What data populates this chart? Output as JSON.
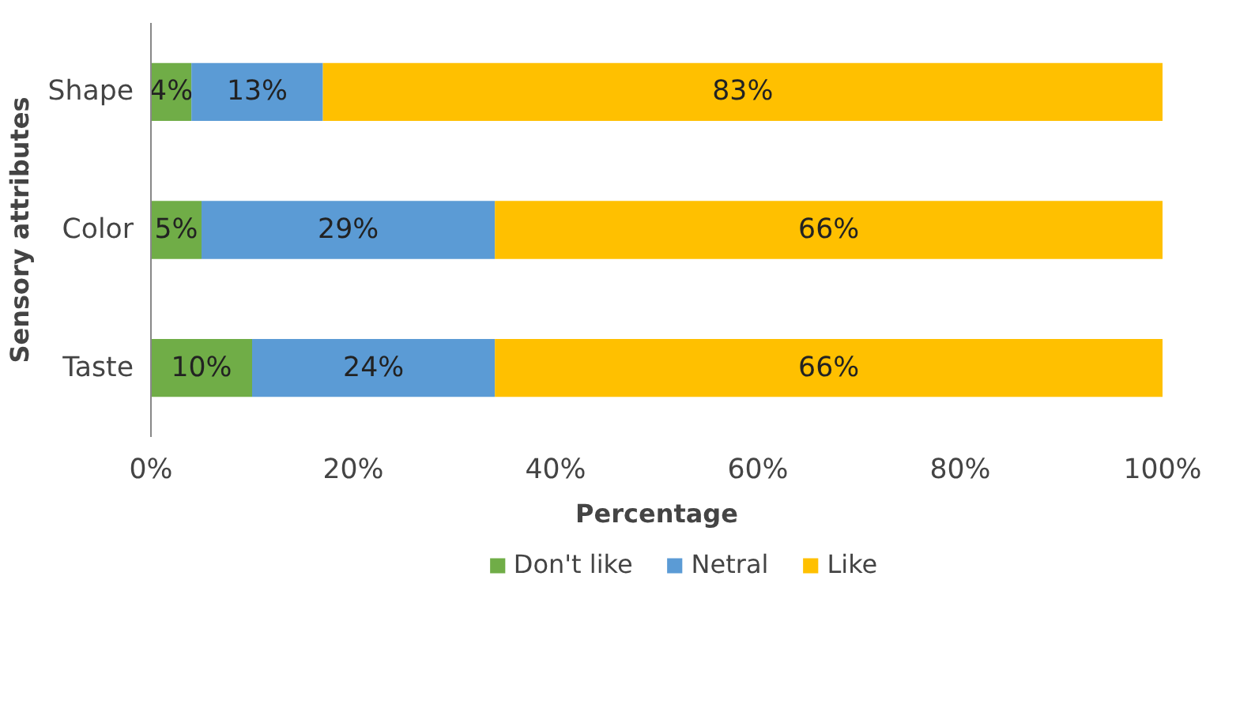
{
  "chart_data": {
    "type": "bar",
    "orientation": "horizontal",
    "stacked": true,
    "xlabel": "Percentage",
    "ylabel": "Sensory attributes",
    "categories": [
      "Shape",
      "Color",
      "Taste"
    ],
    "series": [
      {
        "name": "Don't like",
        "color": "#70ad47",
        "values": [
          4,
          5,
          10
        ],
        "value_labels": [
          "4%",
          "5%",
          "10%"
        ]
      },
      {
        "name": "Netral",
        "color": "#5b9bd5",
        "values": [
          13,
          29,
          24
        ],
        "value_labels": [
          "13%",
          "29%",
          "24%"
        ]
      },
      {
        "name": "Like",
        "color": "#ffc000",
        "values": [
          83,
          66,
          66
        ],
        "value_labels": [
          "83%",
          "66%",
          "66%"
        ]
      }
    ],
    "xlim": [
      0,
      100
    ],
    "xticks": [
      {
        "value": 0,
        "label": "0%"
      },
      {
        "value": 20,
        "label": "20%"
      },
      {
        "value": 40,
        "label": "40%"
      },
      {
        "value": 60,
        "label": "60%"
      },
      {
        "value": 80,
        "label": "80%"
      },
      {
        "value": 100,
        "label": "100%"
      }
    ],
    "grid": false,
    "legend": "bottom"
  }
}
